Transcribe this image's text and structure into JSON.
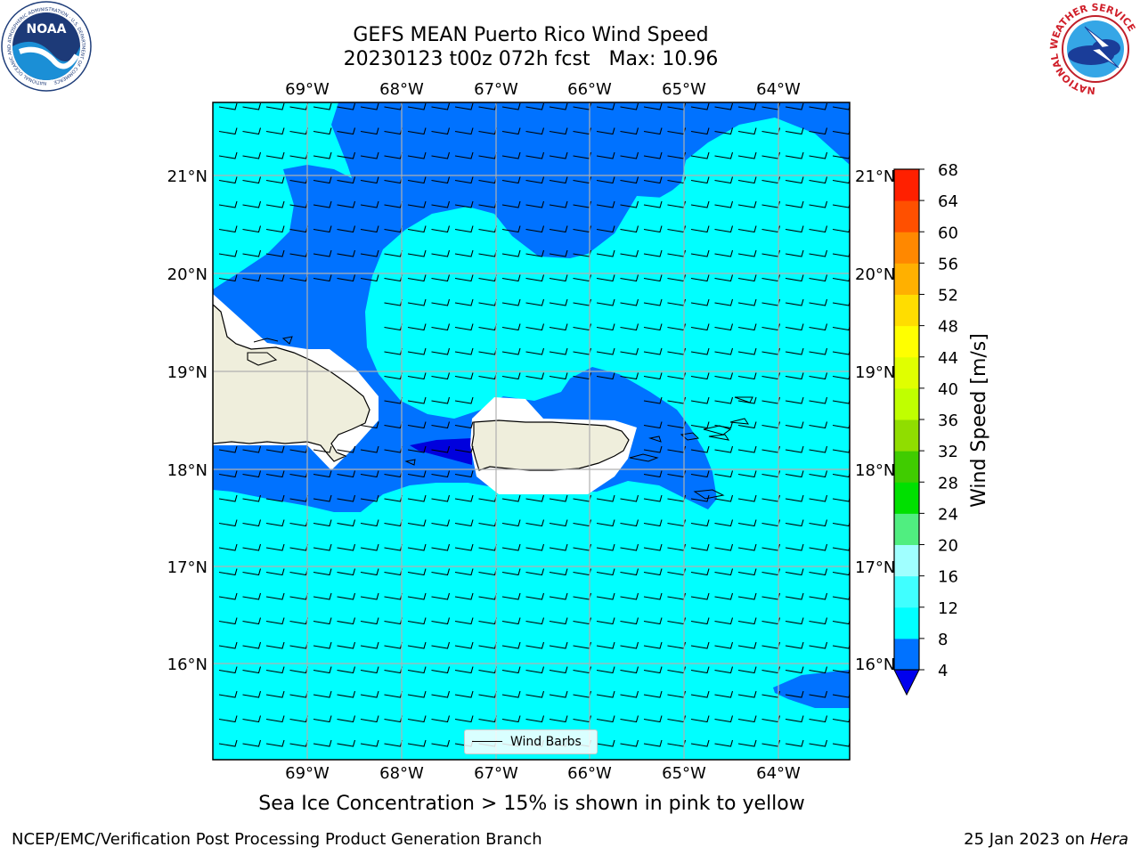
{
  "title_line1": "GEFS MEAN Puerto Rico Wind Speed",
  "title_line2": "20230123 t00z 072h fcst   Max: 10.96",
  "caption": "Sea Ice Concentration > 15% is shown in pink to yellow",
  "footer_left": "NCEP/EMC/Verification Post Processing Product Generation Branch",
  "footer_right_date": "25 Jan 2023 on ",
  "footer_right_machine": "Hera",
  "logo_left_icon": "noaa-logo",
  "logo_right_icon": "nws-logo",
  "logo_left_text": "NOAA",
  "logo_left_ring": "NATIONAL OCEANIC AND ATMOSPHERIC ADMINISTRATION · U.S. DEPARTMENT OF COMMERCE",
  "logo_right_ring": "NATIONAL WEATHER SERVICE",
  "lon_labels": [
    "69°W",
    "68°W",
    "67°W",
    "66°W",
    "65°W",
    "64°W"
  ],
  "lat_labels": [
    "21°N",
    "20°N",
    "19°N",
    "18°N",
    "17°N",
    "16°N"
  ],
  "legend_label": "Wind Barbs",
  "colorbar": {
    "label": "Wind Speed [m/s]",
    "ticks": [
      "4",
      "8",
      "12",
      "16",
      "20",
      "24",
      "28",
      "32",
      "36",
      "40",
      "44",
      "48",
      "52",
      "56",
      "60",
      "64",
      "68"
    ],
    "colors": [
      "#0072ff",
      "#00ffff",
      "#40ffff",
      "#a0ffff",
      "#50ee80",
      "#00e000",
      "#40cc00",
      "#90dd00",
      "#c0ff00",
      "#e0ff00",
      "#ffff00",
      "#ffdd00",
      "#ffb000",
      "#ff8800",
      "#ff5000",
      "#ff2000"
    ],
    "under_color": "#0000ee"
  },
  "colors": {
    "ocean_light": "#00ffff",
    "ocean_mid": "#0072ff",
    "ocean_dark": "#0000dd",
    "land": "#efeedc",
    "grid": "#b0b0b0"
  }
}
